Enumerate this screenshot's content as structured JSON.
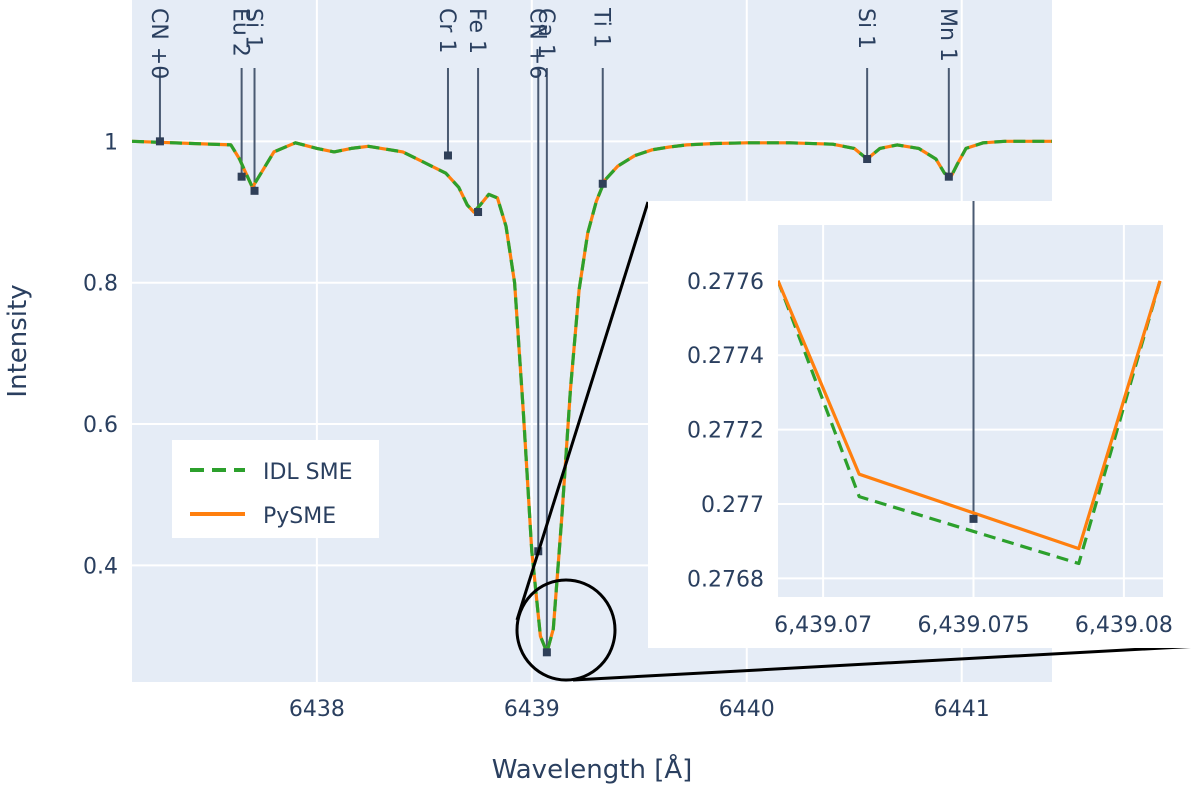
{
  "chart_data": [
    {
      "type": "line",
      "xlabel": "Wavelength [Å]",
      "ylabel": "Intensity",
      "xlim": [
        6437.14,
        6441.42
      ],
      "ylim": [
        0.235,
        1.2
      ],
      "xticks": [
        6438,
        6439,
        6440,
        6441
      ],
      "xtick_labels": [
        "6438",
        "6439",
        "6440",
        "6441"
      ],
      "yticks": [
        0.4,
        0.6,
        0.8,
        1.0
      ],
      "ytick_labels": [
        "0.4",
        "0.6",
        "0.8",
        "1"
      ],
      "grid": true,
      "legend_position": "bottom-left",
      "series": [
        {
          "name": "IDL SME",
          "color": "#2ca02c",
          "style": "dashed",
          "x": [
            6437.14,
            6437.6,
            6437.64,
            6437.67,
            6437.7,
            6437.74,
            6437.8,
            6437.9,
            6438.0,
            6438.08,
            6438.16,
            6438.24,
            6438.3,
            6438.4,
            6438.5,
            6438.6,
            6438.66,
            6438.7,
            6438.73,
            6438.76,
            6438.8,
            6438.84,
            6438.88,
            6438.92,
            6438.96,
            6439.0,
            6439.04,
            6439.07,
            6439.1,
            6439.14,
            6439.18,
            6439.22,
            6439.26,
            6439.3,
            6439.34,
            6439.4,
            6439.48,
            6439.56,
            6439.64,
            6439.72,
            6439.85,
            6440.0,
            6440.2,
            6440.4,
            6440.5,
            6440.56,
            6440.62,
            6440.7,
            6440.8,
            6440.88,
            6440.92,
            6440.95,
            6440.98,
            6441.02,
            6441.1,
            6441.2,
            6441.42
          ],
          "y": [
            1.0,
            0.995,
            0.975,
            0.955,
            0.935,
            0.955,
            0.985,
            0.998,
            0.99,
            0.985,
            0.99,
            0.993,
            0.99,
            0.985,
            0.97,
            0.955,
            0.935,
            0.91,
            0.9,
            0.91,
            0.925,
            0.92,
            0.88,
            0.8,
            0.62,
            0.42,
            0.3,
            0.277,
            0.31,
            0.47,
            0.65,
            0.79,
            0.87,
            0.915,
            0.945,
            0.965,
            0.98,
            0.988,
            0.992,
            0.995,
            0.997,
            0.998,
            0.998,
            0.996,
            0.99,
            0.975,
            0.99,
            0.995,
            0.99,
            0.975,
            0.955,
            0.95,
            0.968,
            0.99,
            0.998,
            1.0,
            1.0
          ]
        },
        {
          "name": "PySME",
          "color": "#ff7f0e",
          "style": "solid",
          "x": [
            6437.14,
            6437.6,
            6437.64,
            6437.67,
            6437.7,
            6437.74,
            6437.8,
            6437.9,
            6438.0,
            6438.08,
            6438.16,
            6438.24,
            6438.3,
            6438.4,
            6438.5,
            6438.6,
            6438.66,
            6438.7,
            6438.73,
            6438.76,
            6438.8,
            6438.84,
            6438.88,
            6438.92,
            6438.96,
            6439.0,
            6439.04,
            6439.07,
            6439.1,
            6439.14,
            6439.18,
            6439.22,
            6439.26,
            6439.3,
            6439.34,
            6439.4,
            6439.48,
            6439.56,
            6439.64,
            6439.72,
            6439.85,
            6440.0,
            6440.2,
            6440.4,
            6440.5,
            6440.56,
            6440.62,
            6440.7,
            6440.8,
            6440.88,
            6440.92,
            6440.95,
            6440.98,
            6441.02,
            6441.1,
            6441.2,
            6441.42
          ],
          "y": [
            1.0,
            0.995,
            0.975,
            0.955,
            0.935,
            0.955,
            0.985,
            0.998,
            0.99,
            0.985,
            0.99,
            0.993,
            0.99,
            0.985,
            0.97,
            0.955,
            0.935,
            0.91,
            0.9,
            0.91,
            0.925,
            0.92,
            0.88,
            0.8,
            0.62,
            0.42,
            0.3,
            0.277,
            0.31,
            0.47,
            0.65,
            0.79,
            0.87,
            0.915,
            0.945,
            0.965,
            0.98,
            0.988,
            0.992,
            0.995,
            0.997,
            0.998,
            0.998,
            0.996,
            0.99,
            0.975,
            0.99,
            0.995,
            0.99,
            0.975,
            0.955,
            0.95,
            0.968,
            0.99,
            0.998,
            1.0,
            1.0
          ]
        }
      ],
      "line_markers": [
        {
          "label": "CN +0",
          "x": 6437.27,
          "y": 1.0
        },
        {
          "label": "Eu 2",
          "x": 6437.65,
          "y": 0.95
        },
        {
          "label": "Si 1",
          "x": 6437.71,
          "y": 0.93
        },
        {
          "label": "Cr 1",
          "x": 6438.61,
          "y": 0.98
        },
        {
          "label": "Fe 1",
          "x": 6438.75,
          "y": 0.9
        },
        {
          "label": "CN +6",
          "x": 6439.03,
          "y": 0.42
        },
        {
          "label": "Ca 1",
          "x": 6439.07,
          "y": 0.277
        },
        {
          "label": "Ti 1",
          "x": 6439.33,
          "y": 0.94
        },
        {
          "label": "Si 1",
          "x": 6440.56,
          "y": 0.975
        },
        {
          "label": "Mn 1",
          "x": 6440.94,
          "y": 0.95
        }
      ]
    },
    {
      "type": "line",
      "xlim": [
        6439.0685,
        6439.0813
      ],
      "ylim": [
        0.27675,
        0.27775
      ],
      "xticks": [
        6439.07,
        6439.075,
        6439.08
      ],
      "xtick_labels": [
        "6,439.07",
        "6,439.075",
        "6,439.08"
      ],
      "yticks": [
        0.2768,
        0.277,
        0.2772,
        0.2774,
        0.2776
      ],
      "ytick_labels": [
        "0.2768",
        "0.277",
        "0.2772",
        "0.2774",
        "0.2776"
      ],
      "grid": true,
      "series": [
        {
          "name": "IDL SME",
          "color": "#2ca02c",
          "style": "dashed",
          "x": [
            6439.0685,
            6439.0712,
            6439.0785,
            6439.0812
          ],
          "y": [
            0.2776,
            0.27702,
            0.27684,
            0.2776
          ]
        },
        {
          "name": "PySME",
          "color": "#ff7f0e",
          "style": "solid",
          "x": [
            6439.0685,
            6439.0712,
            6439.0785,
            6439.0812
          ],
          "y": [
            0.2776,
            0.27708,
            0.27688,
            0.2776
          ]
        }
      ],
      "line_markers": [
        {
          "label": "Ca 1",
          "x": 6439.075,
          "y": 0.27696
        }
      ]
    }
  ]
}
